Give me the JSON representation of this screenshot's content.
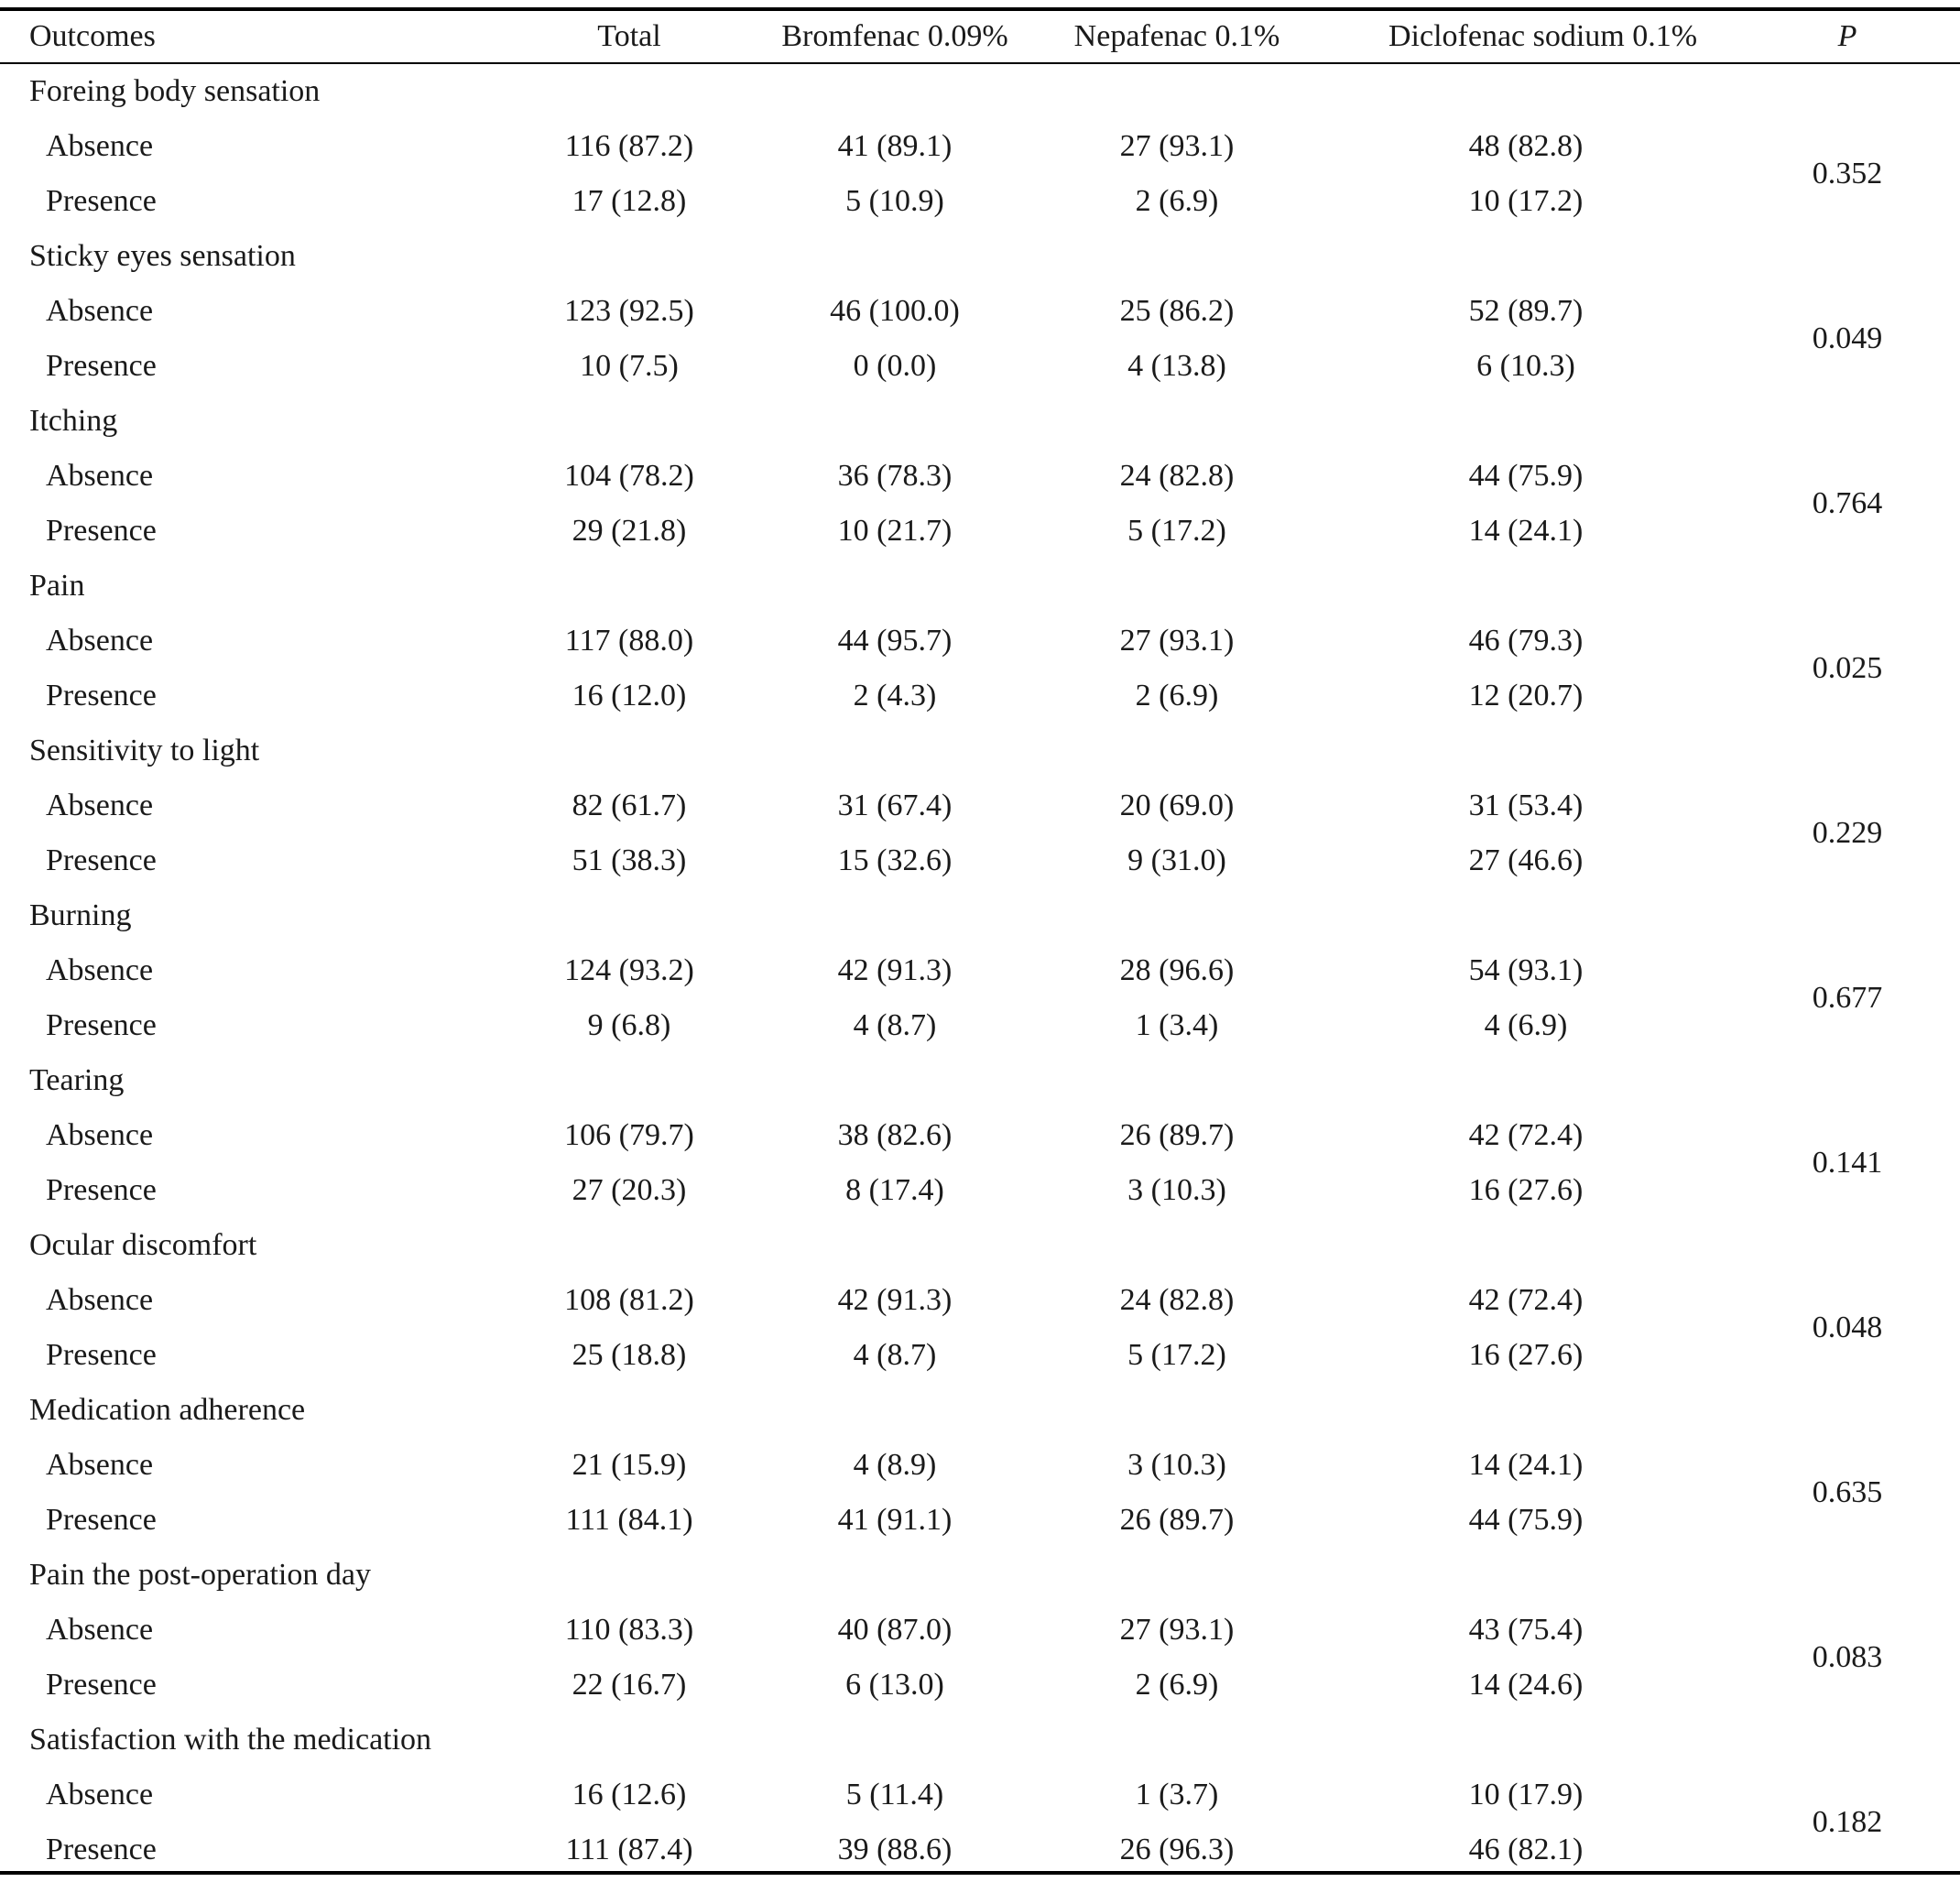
{
  "header": {
    "outcomes": "Outcomes",
    "total": "Total",
    "bromfenac": "Bromfenac 0.09%",
    "nepafenac": "Nepafenac 0.1%",
    "diclofenac": "Diclofenac sodium 0.1%",
    "p": "P"
  },
  "groups": [
    {
      "label": "Foreing body sensation",
      "p": "0.352",
      "rows": [
        {
          "label": "Absence",
          "total": "116 (87.2)",
          "brom": "41 (89.1)",
          "nepa": "27 (93.1)",
          "diclo": "48 (82.8)"
        },
        {
          "label": "Presence",
          "total": "17 (12.8)",
          "brom": "5 (10.9)",
          "nepa": "2 (6.9)",
          "diclo": "10 (17.2)"
        }
      ]
    },
    {
      "label": "Sticky eyes sensation",
      "p": "0.049",
      "rows": [
        {
          "label": "Absence",
          "total": "123 (92.5)",
          "brom": "46 (100.0)",
          "nepa": "25 (86.2)",
          "diclo": "52 (89.7)"
        },
        {
          "label": "Presence",
          "total": "10 (7.5)",
          "brom": "0 (0.0)",
          "nepa": "4 (13.8)",
          "diclo": "6 (10.3)"
        }
      ]
    },
    {
      "label": "Itching",
      "p": "0.764",
      "rows": [
        {
          "label": "Absence",
          "total": "104 (78.2)",
          "brom": "36 (78.3)",
          "nepa": "24 (82.8)",
          "diclo": "44 (75.9)"
        },
        {
          "label": "Presence",
          "total": "29 (21.8)",
          "brom": "10 (21.7)",
          "nepa": "5 (17.2)",
          "diclo": "14 (24.1)"
        }
      ]
    },
    {
      "label": "Pain",
      "p": "0.025",
      "rows": [
        {
          "label": "Absence",
          "total": "117 (88.0)",
          "brom": "44 (95.7)",
          "nepa": "27 (93.1)",
          "diclo": "46 (79.3)"
        },
        {
          "label": "Presence",
          "total": "16 (12.0)",
          "brom": "2 (4.3)",
          "nepa": "2 (6.9)",
          "diclo": "12 (20.7)"
        }
      ]
    },
    {
      "label": "Sensitivity to light",
      "p": "0.229",
      "rows": [
        {
          "label": "Absence",
          "total": "82 (61.7)",
          "brom": "31 (67.4)",
          "nepa": "20 (69.0)",
          "diclo": "31 (53.4)"
        },
        {
          "label": "Presence",
          "total": "51 (38.3)",
          "brom": "15 (32.6)",
          "nepa": "9 (31.0)",
          "diclo": "27 (46.6)"
        }
      ]
    },
    {
      "label": "Burning",
      "p": "0.677",
      "rows": [
        {
          "label": "Absence",
          "total": "124 (93.2)",
          "brom": "42 (91.3)",
          "nepa": "28 (96.6)",
          "diclo": "54 (93.1)"
        },
        {
          "label": "Presence",
          "total": "9 (6.8)",
          "brom": "4 (8.7)",
          "nepa": "1 (3.4)",
          "diclo": "4 (6.9)"
        }
      ]
    },
    {
      "label": "Tearing",
      "p": "0.141",
      "rows": [
        {
          "label": "Absence",
          "total": "106 (79.7)",
          "brom": "38 (82.6)",
          "nepa": "26 (89.7)",
          "diclo": "42 (72.4)"
        },
        {
          "label": "Presence",
          "total": "27 (20.3)",
          "brom": "8 (17.4)",
          "nepa": "3 (10.3)",
          "diclo": "16 (27.6)"
        }
      ]
    },
    {
      "label": "Ocular discomfort",
      "p": "0.048",
      "rows": [
        {
          "label": "Absence",
          "total": "108 (81.2)",
          "brom": "42 (91.3)",
          "nepa": "24 (82.8)",
          "diclo": "42 (72.4)"
        },
        {
          "label": "Presence",
          "total": "25 (18.8)",
          "brom": "4 (8.7)",
          "nepa": "5 (17.2)",
          "diclo": "16 (27.6)"
        }
      ]
    },
    {
      "label": "Medication adherence",
      "p": "0.635",
      "rows": [
        {
          "label": "Absence",
          "total": "21 (15.9)",
          "brom": "4 (8.9)",
          "nepa": "3 (10.3)",
          "diclo": "14 (24.1)"
        },
        {
          "label": "Presence",
          "total": "111 (84.1)",
          "brom": "41 (91.1)",
          "nepa": "26 (89.7)",
          "diclo": "44 (75.9)"
        }
      ]
    },
    {
      "label": "Pain the post-operation day",
      "p": "0.083",
      "rows": [
        {
          "label": "Absence",
          "total": "110 (83.3)",
          "brom": "40 (87.0)",
          "nepa": "27 (93.1)",
          "diclo": "43 (75.4)"
        },
        {
          "label": "Presence",
          "total": "22 (16.7)",
          "brom": "6 (13.0)",
          "nepa": "2 (6.9)",
          "diclo": "14 (24.6)"
        }
      ]
    },
    {
      "label": "Satisfaction with the medication",
      "p": "0.182",
      "rows": [
        {
          "label": "Absence",
          "total": "16 (12.6)",
          "brom": "5 (11.4)",
          "nepa": "1 (3.7)",
          "diclo": "10 (17.9)"
        },
        {
          "label": "Presence",
          "total": "111 (87.4)",
          "brom": "39 (88.6)",
          "nepa": "26 (96.3)",
          "diclo": "46 (82.1)"
        }
      ]
    }
  ]
}
